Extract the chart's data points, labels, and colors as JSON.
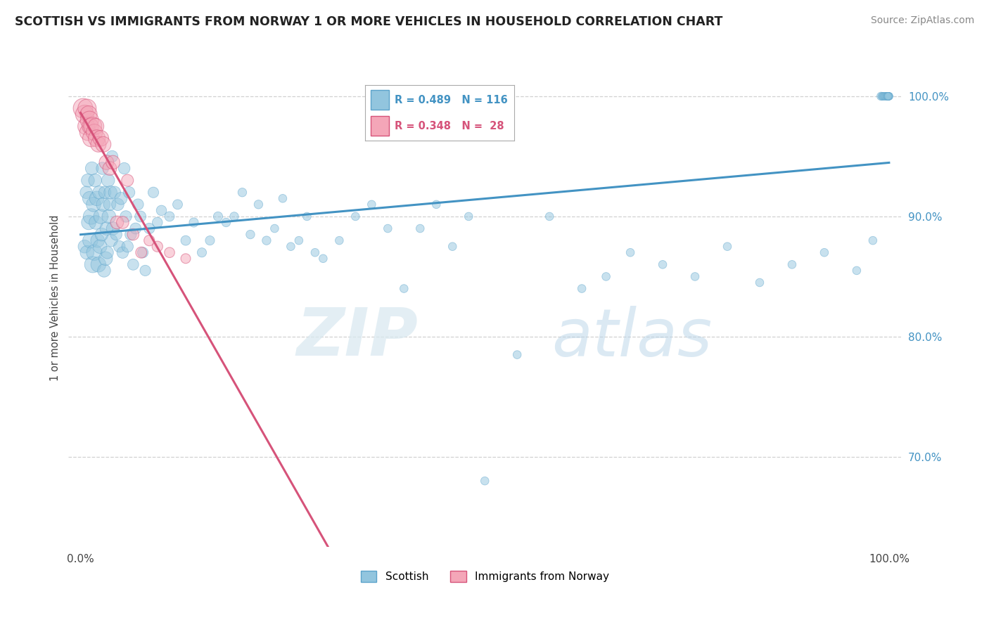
{
  "title": "SCOTTISH VS IMMIGRANTS FROM NORWAY 1 OR MORE VEHICLES IN HOUSEHOLD CORRELATION CHART",
  "source": "Source: ZipAtlas.com",
  "ylabel": "1 or more Vehicles in Household",
  "ymin": 0.625,
  "ymax": 1.04,
  "yticks": [
    0.7,
    0.8,
    0.9,
    1.0
  ],
  "ytick_labels": [
    "70.0%",
    "80.0%",
    "90.0%",
    "100.0%"
  ],
  "xtick_labels": [
    "0.0%",
    "",
    "",
    "",
    "",
    "",
    "",
    "",
    "",
    "",
    "100.0%"
  ],
  "watermark_zip": "ZIP",
  "watermark_atlas": "atlas",
  "legend_blue_r": "R = 0.489",
  "legend_blue_n": "N = 116",
  "legend_pink_r": "R = 0.348",
  "legend_pink_n": "N =  28",
  "blue_color": "#92c5de",
  "pink_color": "#f4a6b8",
  "blue_line_color": "#4393c3",
  "pink_line_color": "#d6537a",
  "blue_edge_color": "#5ba3cb",
  "pink_edge_color": "#d6537a",
  "scatter_alpha": 0.5,
  "blue_x": [
    0.005,
    0.007,
    0.008,
    0.009,
    0.01,
    0.011,
    0.012,
    0.013,
    0.014,
    0.015,
    0.016,
    0.017,
    0.018,
    0.019,
    0.02,
    0.021,
    0.022,
    0.023,
    0.024,
    0.025,
    0.026,
    0.027,
    0.028,
    0.029,
    0.03,
    0.031,
    0.032,
    0.033,
    0.034,
    0.035,
    0.036,
    0.037,
    0.038,
    0.039,
    0.04,
    0.042,
    0.044,
    0.046,
    0.048,
    0.05,
    0.052,
    0.054,
    0.056,
    0.058,
    0.06,
    0.062,
    0.065,
    0.068,
    0.071,
    0.074,
    0.077,
    0.08,
    0.085,
    0.09,
    0.095,
    0.1,
    0.11,
    0.12,
    0.13,
    0.14,
    0.15,
    0.16,
    0.17,
    0.18,
    0.19,
    0.2,
    0.21,
    0.22,
    0.23,
    0.24,
    0.25,
    0.26,
    0.27,
    0.28,
    0.29,
    0.3,
    0.32,
    0.34,
    0.36,
    0.38,
    0.4,
    0.42,
    0.44,
    0.46,
    0.48,
    0.5,
    0.54,
    0.58,
    0.62,
    0.65,
    0.68,
    0.72,
    0.76,
    0.8,
    0.84,
    0.88,
    0.92,
    0.96,
    0.98,
    0.99,
    0.991,
    0.992,
    0.993,
    0.994,
    0.995,
    0.996,
    0.997,
    0.998,
    0.999,
    1.0,
    0.999,
    0.999,
    1.0,
    1.0,
    0.998,
    0.999
  ],
  "blue_y": [
    0.875,
    0.92,
    0.87,
    0.93,
    0.895,
    0.915,
    0.88,
    0.9,
    0.94,
    0.86,
    0.91,
    0.87,
    0.93,
    0.895,
    0.915,
    0.88,
    0.86,
    0.92,
    0.875,
    0.9,
    0.885,
    0.94,
    0.91,
    0.855,
    0.92,
    0.865,
    0.89,
    0.87,
    0.93,
    0.9,
    0.91,
    0.92,
    0.88,
    0.95,
    0.89,
    0.92,
    0.885,
    0.91,
    0.875,
    0.915,
    0.87,
    0.94,
    0.9,
    0.875,
    0.92,
    0.885,
    0.86,
    0.89,
    0.91,
    0.9,
    0.87,
    0.855,
    0.89,
    0.92,
    0.895,
    0.905,
    0.9,
    0.91,
    0.88,
    0.895,
    0.87,
    0.88,
    0.9,
    0.895,
    0.9,
    0.92,
    0.885,
    0.91,
    0.88,
    0.89,
    0.915,
    0.875,
    0.88,
    0.9,
    0.87,
    0.865,
    0.88,
    0.9,
    0.91,
    0.89,
    0.84,
    0.89,
    0.91,
    0.875,
    0.9,
    0.68,
    0.785,
    0.9,
    0.84,
    0.85,
    0.87,
    0.86,
    0.85,
    0.875,
    0.845,
    0.86,
    0.87,
    0.855,
    0.88,
    1.0,
    1.0,
    1.0,
    1.0,
    1.0,
    1.0,
    1.0,
    1.0,
    1.0,
    1.0,
    1.0,
    1.0,
    1.0,
    1.0,
    1.0,
    1.0,
    1.0
  ],
  "blue_s": [
    180,
    160,
    200,
    180,
    220,
    200,
    240,
    260,
    180,
    280,
    220,
    260,
    180,
    200,
    220,
    200,
    240,
    180,
    200,
    220,
    180,
    160,
    200,
    180,
    160,
    200,
    180,
    160,
    180,
    200,
    160,
    180,
    160,
    140,
    180,
    160,
    140,
    160,
    140,
    160,
    140,
    140,
    140,
    140,
    140,
    140,
    130,
    130,
    130,
    130,
    120,
    120,
    120,
    120,
    110,
    110,
    100,
    100,
    100,
    90,
    90,
    90,
    90,
    80,
    80,
    80,
    80,
    80,
    80,
    70,
    70,
    70,
    70,
    70,
    70,
    70,
    70,
    70,
    70,
    70,
    70,
    70,
    70,
    70,
    70,
    70,
    70,
    70,
    70,
    70,
    70,
    70,
    70,
    70,
    70,
    70,
    70,
    70,
    70,
    70,
    60,
    60,
    60,
    60,
    60,
    60,
    60,
    60,
    60,
    60,
    60,
    60,
    60,
    60,
    60,
    60
  ],
  "pink_x": [
    0.003,
    0.005,
    0.007,
    0.008,
    0.009,
    0.01,
    0.011,
    0.012,
    0.013,
    0.015,
    0.017,
    0.019,
    0.02,
    0.022,
    0.025,
    0.028,
    0.032,
    0.036,
    0.04,
    0.045,
    0.052,
    0.058,
    0.065,
    0.075,
    0.085,
    0.095,
    0.11,
    0.13
  ],
  "pink_y": [
    0.99,
    0.985,
    0.975,
    0.99,
    0.97,
    0.985,
    0.98,
    0.975,
    0.965,
    0.975,
    0.97,
    0.975,
    0.965,
    0.96,
    0.965,
    0.96,
    0.945,
    0.94,
    0.945,
    0.895,
    0.895,
    0.93,
    0.885,
    0.87,
    0.88,
    0.875,
    0.87,
    0.865
  ],
  "pink_s": [
    400,
    350,
    300,
    350,
    280,
    300,
    350,
    280,
    300,
    350,
    280,
    260,
    300,
    250,
    260,
    250,
    220,
    200,
    200,
    180,
    160,
    150,
    140,
    130,
    120,
    120,
    110,
    100
  ]
}
